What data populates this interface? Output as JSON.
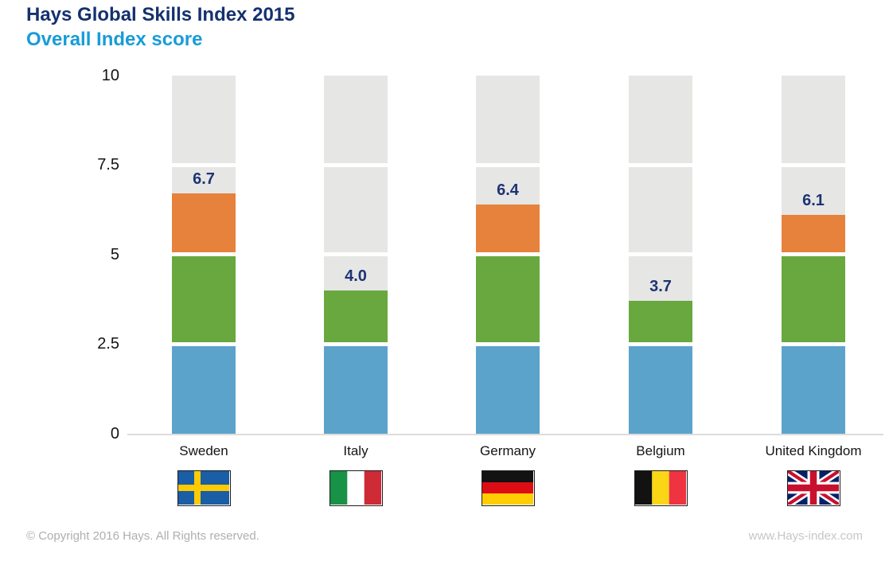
{
  "page": {
    "title": "Hays Global Skills Index 2015",
    "subtitle": "Overall Index score"
  },
  "footer": {
    "copyright": "© Copyright 2016 Hays. All Rights reserved.",
    "website": "www.Hays-index.com"
  },
  "colors": {
    "title_navy": "#14316F",
    "subtitle_blue": "#189CD8",
    "value_label_navy": "#1E3474",
    "segment_blue": "#5CA3CC",
    "segment_green": "#69A83E",
    "segment_orange": "#E6823C",
    "track_gray": "#E6E6E5",
    "axis_line_gray": "#DCDCDC"
  },
  "chart_data": {
    "type": "bar",
    "title": "Hays Global Skills Index 2015",
    "subtitle": "Overall Index score",
    "categories": [
      "Sweden",
      "Italy",
      "Germany",
      "Belgium",
      "United Kingdom"
    ],
    "values": [
      6.7,
      4.0,
      6.4,
      3.7,
      6.1
    ],
    "value_labels": [
      "6.7",
      "4.0",
      "6.4",
      "3.7",
      "6.1"
    ],
    "ylim": [
      0,
      10
    ],
    "yticks": [
      0,
      2.5,
      5,
      7.5,
      10
    ],
    "ytick_labels": [
      "0",
      "2.5",
      "5",
      "7.5",
      "10"
    ],
    "grid": false,
    "legend": "none",
    "bar_style": "progress bar segmented into quarters: 0-2.5 blue, 2.5-5 green, 5-7.5 orange, unfilled remainder up to 10 is gray track with white gaps at quarter boundaries",
    "segment_colors": [
      "#5CA3CC",
      "#69A83E",
      "#E6823C",
      "#E6E6E5"
    ],
    "flags": [
      "sweden",
      "italy",
      "germany",
      "belgium",
      "united-kingdom"
    ]
  }
}
